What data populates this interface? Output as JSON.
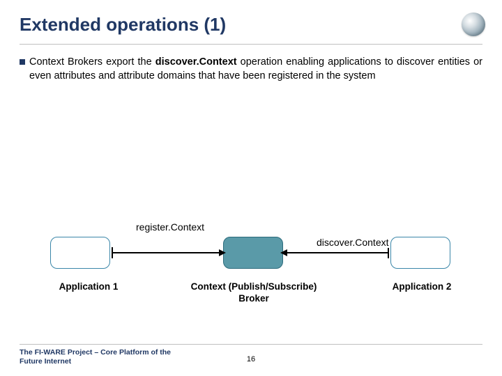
{
  "title": "Extended operations (1)",
  "bullet": {
    "prefix": "Context Brokers export the ",
    "bold": "discover.Context",
    "suffix": " operation enabling applications to discover entities or even attributes and attribute domains that have been registered in the system"
  },
  "diagram": {
    "boxes": {
      "app1": {
        "fill": "#ffffff",
        "stroke": "#3a86a8"
      },
      "broker": {
        "fill": "#5a9aa8",
        "stroke": "#2c6b7c"
      },
      "app2": {
        "fill": "#ffffff",
        "stroke": "#3a86a8"
      }
    },
    "arrows": {
      "registerLabel": "register.Context",
      "discoverLabel": "discover.Context"
    },
    "captions": {
      "app1": "Application 1",
      "broker_line1": "Context (Publish/Subscribe)",
      "broker_line2": "Broker",
      "app2": "Application 2"
    }
  },
  "footer": {
    "text_line1": "The FI-WARE Project – Core Platform of the",
    "text_line2": "Future Internet",
    "page": "16"
  },
  "colors": {
    "title": "#203864",
    "underline": "#bfbfbf",
    "text": "#000000"
  }
}
